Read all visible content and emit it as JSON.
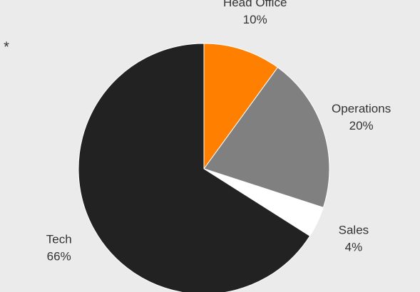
{
  "chart_data": {
    "type": "pie",
    "annotation": "*",
    "categories": [
      "Head Office",
      "Operations",
      "Sales",
      "Tech"
    ],
    "values": [
      10,
      20,
      4,
      66
    ],
    "value_labels": [
      "10%",
      "20%",
      "4%",
      "66%"
    ],
    "colors": [
      "#ff8000",
      "#808080",
      "#ffffff",
      "#222222"
    ]
  }
}
